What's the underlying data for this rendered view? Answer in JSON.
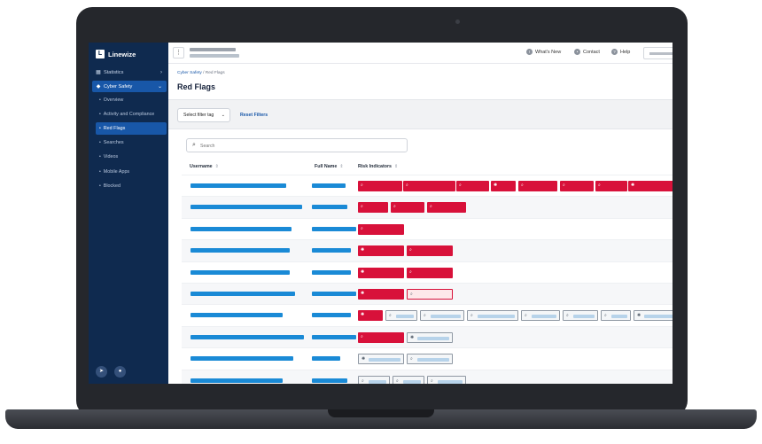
{
  "brand": {
    "name": "Linewize",
    "mark": "L"
  },
  "sidebar": {
    "items": [
      {
        "label": "Statistics",
        "icon": "chart-icon"
      },
      {
        "label": "Cyber Safety",
        "icon": "shield-icon"
      }
    ],
    "sub_items": [
      "Overview",
      "Activity and Compliance",
      "Red Flags",
      "Searches",
      "Videos",
      "Mobile Apps",
      "Blocked"
    ],
    "active": "Red Flags"
  },
  "topbar": {
    "links": [
      {
        "label": "What's New",
        "icon": "megaphone-icon"
      },
      {
        "label": "Contact",
        "icon": "chat-icon"
      },
      {
        "label": "Help",
        "icon": "help-icon"
      }
    ]
  },
  "breadcrumb": {
    "parent": "Cyber Safety",
    "separator": "/",
    "current": "Red Flags"
  },
  "page_title": "Red Flags",
  "filters": {
    "select_label": "Select filter tag",
    "reset_label": "Reset Filters"
  },
  "search": {
    "placeholder": "Search",
    "value": ""
  },
  "table": {
    "columns": [
      "Username",
      "Full Name",
      "Risk Indicators"
    ],
    "rows": [
      {
        "tags": [
          "red-search",
          "red-search",
          "red-search",
          "red-globe",
          "red-search",
          "red-search",
          "red-search",
          "red-globe"
        ]
      },
      {
        "tags": [
          "red-search",
          "red-search",
          "red-search"
        ]
      },
      {
        "tags": [
          "red-search"
        ]
      },
      {
        "tags": [
          "red-globe",
          "red-search"
        ]
      },
      {
        "tags": [
          "red-globe",
          "red-search"
        ]
      },
      {
        "tags": [
          "red-globe",
          "outline-search"
        ]
      },
      {
        "tags": [
          "red-globe",
          "grey-search",
          "grey-search",
          "grey-search",
          "grey-search",
          "grey-search",
          "grey-search",
          "grey-globe"
        ]
      },
      {
        "tags": [
          "red-search",
          "grey-globe"
        ]
      },
      {
        "tags": [
          "grey-globe",
          "grey-search"
        ]
      },
      {
        "tags": [
          "grey-search",
          "grey-search",
          "grey-search"
        ]
      }
    ]
  },
  "colors": {
    "sidebar": "#0f2a4f",
    "active": "#1857a8",
    "flag_red": "#d8113a",
    "redacted_blue": "#1a8ad6"
  }
}
